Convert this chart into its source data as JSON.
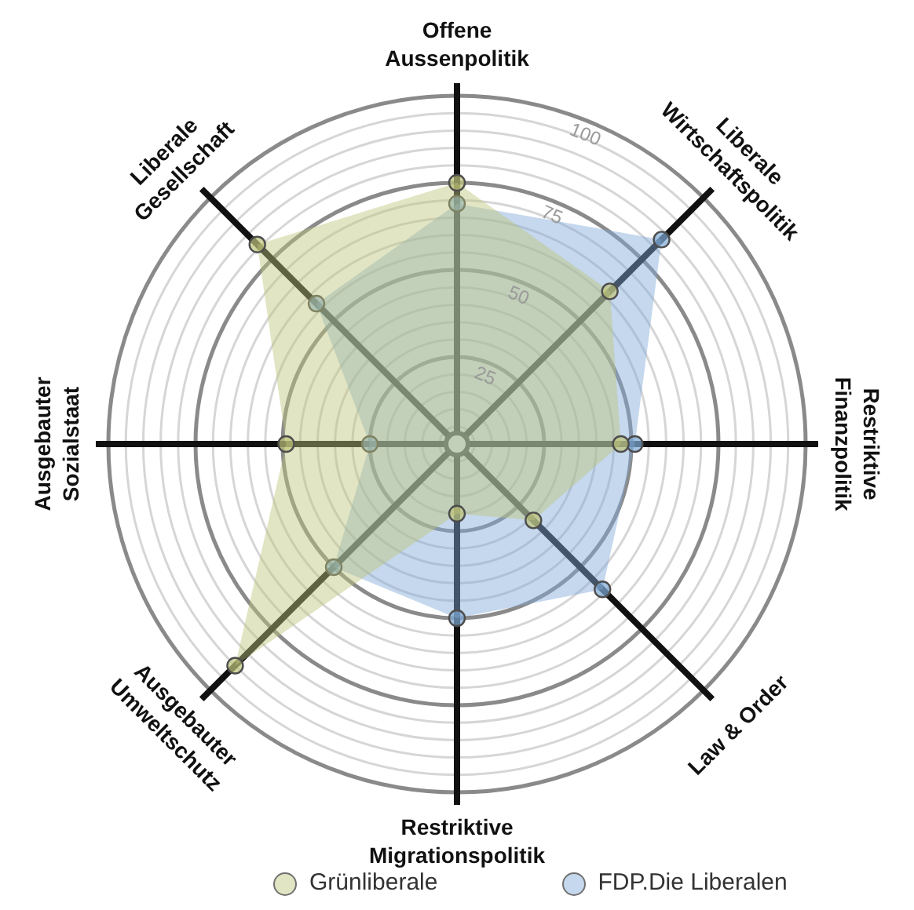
{
  "chart_data": {
    "type": "radar",
    "categories": [
      "Offene Aussenpolitik",
      "Liberale Wirtschaftspolitik",
      "Restriktive Finanzpolitik",
      "Law & Order",
      "Restriktive Migrationspolitik",
      "Ausgebauter Umweltschutz",
      "Ausgebauter Sozialstaat",
      "Liberale Gesellschaft"
    ],
    "series": [
      {
        "name": "Grünliberale",
        "color": "#bfc57a",
        "values": [
          75,
          62,
          47,
          31,
          20,
          90,
          49,
          81
        ]
      },
      {
        "name": "FDP.Die Liberalen",
        "color": "#7fa9d6",
        "values": [
          69,
          83,
          51,
          59,
          50,
          50,
          25,
          57
        ]
      }
    ],
    "ylim": [
      0,
      100
    ],
    "yticks": [
      25,
      50,
      75,
      100
    ],
    "grid": true,
    "legend": "bottom",
    "marker": "circle"
  }
}
